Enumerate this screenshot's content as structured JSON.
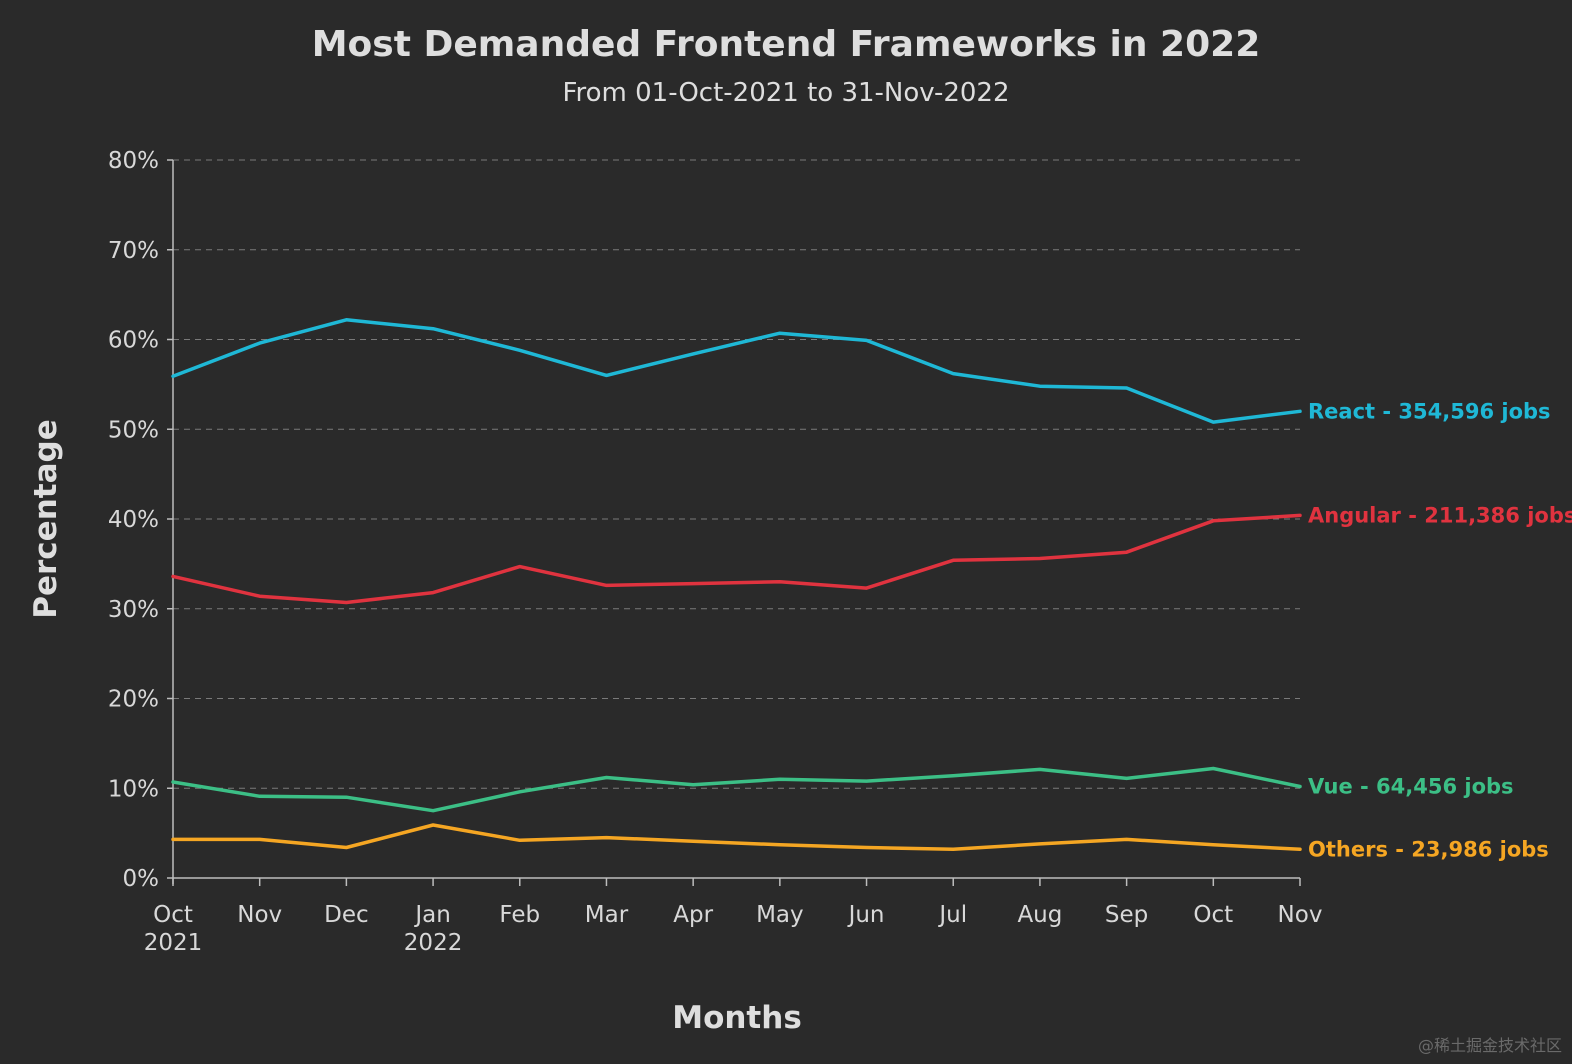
{
  "chart_data": {
    "type": "line",
    "title": "Most Demanded Frontend Frameworks in 2022",
    "subtitle": "From 01-Oct-2021 to 31-Nov-2022",
    "xlabel": "Months",
    "ylabel": "Percentage",
    "ylim": [
      0,
      80
    ],
    "yticks": [
      0,
      10,
      20,
      30,
      40,
      50,
      60,
      70,
      80
    ],
    "ytick_suffix": "%",
    "grid": true,
    "categories": [
      "Oct",
      "Nov",
      "Dec",
      "Jan",
      "Feb",
      "Mar",
      "Apr",
      "May",
      "Jun",
      "Jul",
      "Aug",
      "Sep",
      "Oct",
      "Nov"
    ],
    "category_sublabels": [
      "2021",
      "",
      "",
      "2022",
      "",
      "",
      "",
      "",
      "",
      "",
      "",
      "",
      "",
      ""
    ],
    "series": [
      {
        "name": "React",
        "label": "React - 354,596 jobs",
        "color": "#1fb8d6",
        "values": [
          55.9,
          59.6,
          62.2,
          61.2,
          58.8,
          56.0,
          58.4,
          60.7,
          59.9,
          56.2,
          54.8,
          54.6,
          50.8,
          52.0
        ]
      },
      {
        "name": "Angular",
        "label": "Angular - 211,386 jobs",
        "color": "#e0333f",
        "values": [
          33.6,
          31.4,
          30.7,
          31.8,
          34.7,
          32.6,
          32.8,
          33.0,
          32.3,
          35.4,
          35.6,
          36.3,
          39.8,
          40.4
        ]
      },
      {
        "name": "Vue",
        "label": "Vue - 64,456 jobs",
        "color": "#3cbf86",
        "values": [
          10.7,
          9.1,
          9.0,
          7.5,
          9.6,
          11.2,
          10.4,
          11.0,
          10.8,
          11.4,
          12.1,
          11.1,
          12.2,
          10.2
        ]
      },
      {
        "name": "Others",
        "label": "Others - 23,986 jobs",
        "color": "#f5a623",
        "values": [
          4.3,
          4.3,
          3.4,
          5.9,
          4.2,
          4.5,
          4.1,
          3.7,
          3.4,
          3.2,
          3.8,
          4.3,
          3.7,
          3.2
        ]
      }
    ]
  },
  "watermark": "@稀土掘金技术社区"
}
